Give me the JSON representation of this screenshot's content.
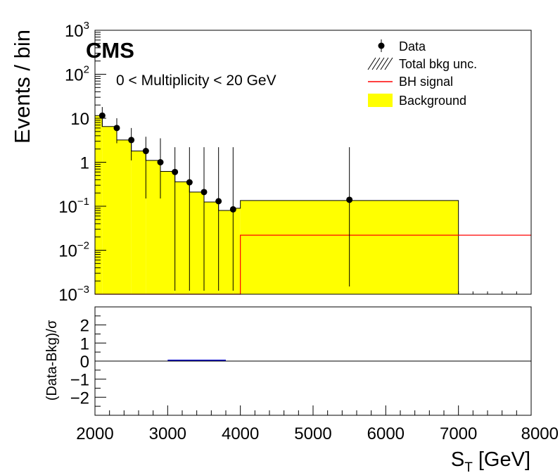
{
  "chart_data": [
    {
      "type": "bar",
      "panel": "main",
      "ylabel": "Events / bin",
      "ylog": true,
      "ylim": [
        0.001,
        1000
      ],
      "xlim": [
        2000,
        8000
      ],
      "y_ticks": [
        {
          "value": 1000,
          "mantissa": "10",
          "exp": "3"
        },
        {
          "value": 100,
          "mantissa": "10",
          "exp": "2"
        },
        {
          "value": 10,
          "mantissa": "10",
          "exp": ""
        },
        {
          "value": 1,
          "mantissa": "1",
          "exp": ""
        },
        {
          "value": 0.1,
          "mantissa": "10",
          "exp": "−1"
        },
        {
          "value": 0.01,
          "mantissa": "10",
          "exp": "−2"
        },
        {
          "value": 0.001,
          "mantissa": "10",
          "exp": "−3"
        }
      ],
      "experiment_label": "CMS",
      "annotation": "0 < Multiplicity < 20 GeV",
      "legend": {
        "position": "top-right",
        "entries": [
          {
            "label": "Data",
            "style": "marker"
          },
          {
            "label": "Total bkg unc.",
            "style": "hatch"
          },
          {
            "label": "BH signal",
            "style": "line",
            "color": "#ff0000"
          },
          {
            "label": "Background",
            "style": "fill",
            "color": "#ffff00"
          }
        ]
      },
      "background": {
        "color": "#ffff00",
        "bins": [
          {
            "lo": 2000,
            "hi": 2100,
            "value": 11.5
          },
          {
            "lo": 2100,
            "hi": 2300,
            "value": 6.5
          },
          {
            "lo": 2300,
            "hi": 2500,
            "value": 3.2
          },
          {
            "lo": 2500,
            "hi": 2700,
            "value": 1.8
          },
          {
            "lo": 2700,
            "hi": 2900,
            "value": 1.1
          },
          {
            "lo": 2900,
            "hi": 3100,
            "value": 0.62
          },
          {
            "lo": 3100,
            "hi": 3300,
            "value": 0.36
          },
          {
            "lo": 3300,
            "hi": 3500,
            "value": 0.21
          },
          {
            "lo": 3500,
            "hi": 3700,
            "value": 0.125
          },
          {
            "lo": 3700,
            "hi": 3900,
            "value": 0.08
          },
          {
            "lo": 3900,
            "hi": 4000,
            "value": 0.09
          },
          {
            "lo": 4000,
            "hi": 7000,
            "value": 0.135
          }
        ]
      },
      "signal": {
        "color": "#ff0000",
        "bins": [
          {
            "lo": 2000,
            "hi": 4000,
            "value": 0.001
          },
          {
            "lo": 4000,
            "hi": 8000,
            "value": 0.022
          }
        ]
      },
      "data_points": [
        {
          "x": 2100,
          "y": 11.5,
          "ylo": 6.5,
          "yhi": 18
        },
        {
          "x": 2300,
          "y": 6.0,
          "ylo": 2.7,
          "yhi": 10
        },
        {
          "x": 2500,
          "y": 3.2,
          "ylo": 1.1,
          "yhi": 6
        },
        {
          "x": 2700,
          "y": 1.8,
          "ylo": 0.15,
          "yhi": 3.8
        },
        {
          "x": 2900,
          "y": 1.0,
          "ylo": 0.15,
          "yhi": 3.5
        },
        {
          "x": 3100,
          "y": 0.6,
          "ylo": 0.0012,
          "yhi": 2.2
        },
        {
          "x": 3300,
          "y": 0.35,
          "ylo": 0.0012,
          "yhi": 2.2
        },
        {
          "x": 3500,
          "y": 0.21,
          "ylo": 0.0012,
          "yhi": 2.2
        },
        {
          "x": 3700,
          "y": 0.13,
          "ylo": 0.0012,
          "yhi": 2.2
        },
        {
          "x": 3900,
          "y": 0.085,
          "ylo": 0.0012,
          "yhi": 2.2
        },
        {
          "x": 5500,
          "y": 0.14,
          "ylo": 0.0015,
          "yhi": 2.2
        }
      ]
    },
    {
      "type": "line",
      "panel": "ratio",
      "ylabel": "(Data-Bkg)/σ",
      "xlabel": "S_T [GeV]",
      "xlabel_main": "S",
      "xlabel_sub": "T",
      "xlabel_rest": " [GeV]",
      "xlim": [
        2000,
        8000
      ],
      "ylim": [
        -3,
        3
      ],
      "y_ticks": [
        -2,
        -1,
        0,
        1,
        2
      ],
      "y_tick_labels": [
        "−2",
        "−1",
        "0",
        "1",
        "2"
      ],
      "x_ticks": [
        2000,
        3000,
        4000,
        5000,
        6000,
        7000,
        8000
      ],
      "x_tick_labels": [
        "2000",
        "3000",
        "4000",
        "5000",
        "6000",
        "7000",
        "8000"
      ],
      "series": [
        {
          "color": "#0000cc",
          "x": [
            3000,
            3800
          ],
          "values": [
            0.05,
            0.05
          ]
        }
      ]
    }
  ]
}
